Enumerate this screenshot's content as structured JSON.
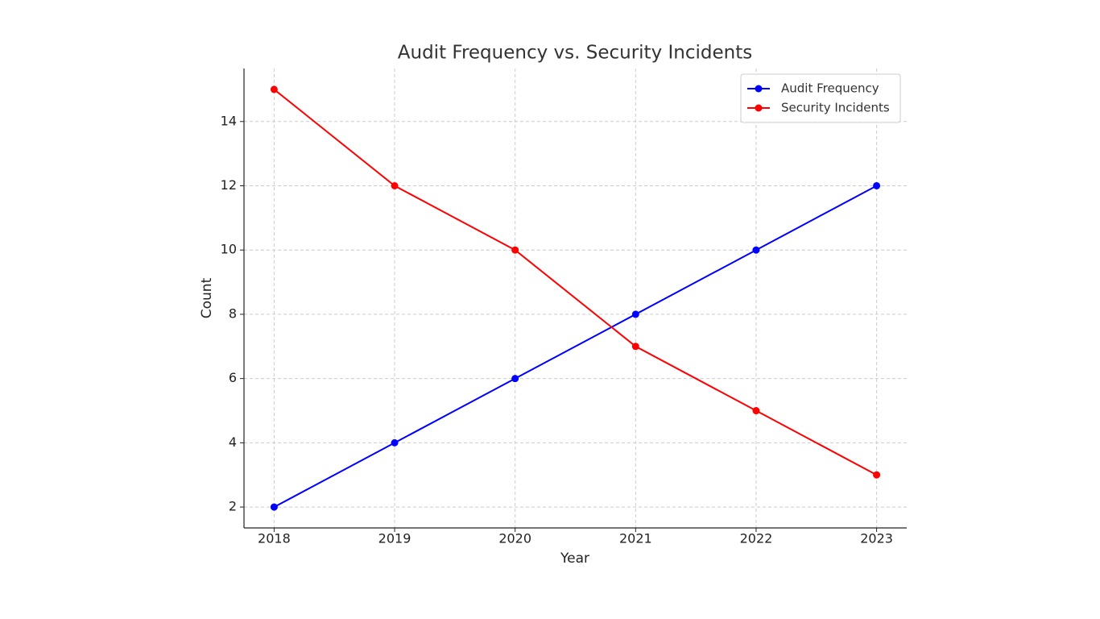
{
  "chart_data": {
    "type": "line",
    "title": "Audit Frequency vs. Security Incidents",
    "x_label": "Year",
    "y_label": "Count",
    "x": [
      2018,
      2019,
      2020,
      2021,
      2022,
      2023
    ],
    "series": [
      {
        "name": "Audit Frequency",
        "color": "#0000ff",
        "values": [
          2,
          4,
          6,
          8,
          10,
          12
        ]
      },
      {
        "name": "Security Incidents",
        "color": "#ff0000",
        "values": [
          15,
          12,
          10,
          7,
          5,
          3
        ]
      }
    ],
    "xlim": [
      2017.75,
      2023.25
    ],
    "xticks": [
      2018,
      2019,
      2020,
      2021,
      2022,
      2023
    ],
    "ylim": [
      1.35,
      15.65
    ],
    "yticks": [
      2,
      4,
      6,
      8,
      10,
      12,
      14
    ],
    "grid": true,
    "legend": "upper-right"
  }
}
